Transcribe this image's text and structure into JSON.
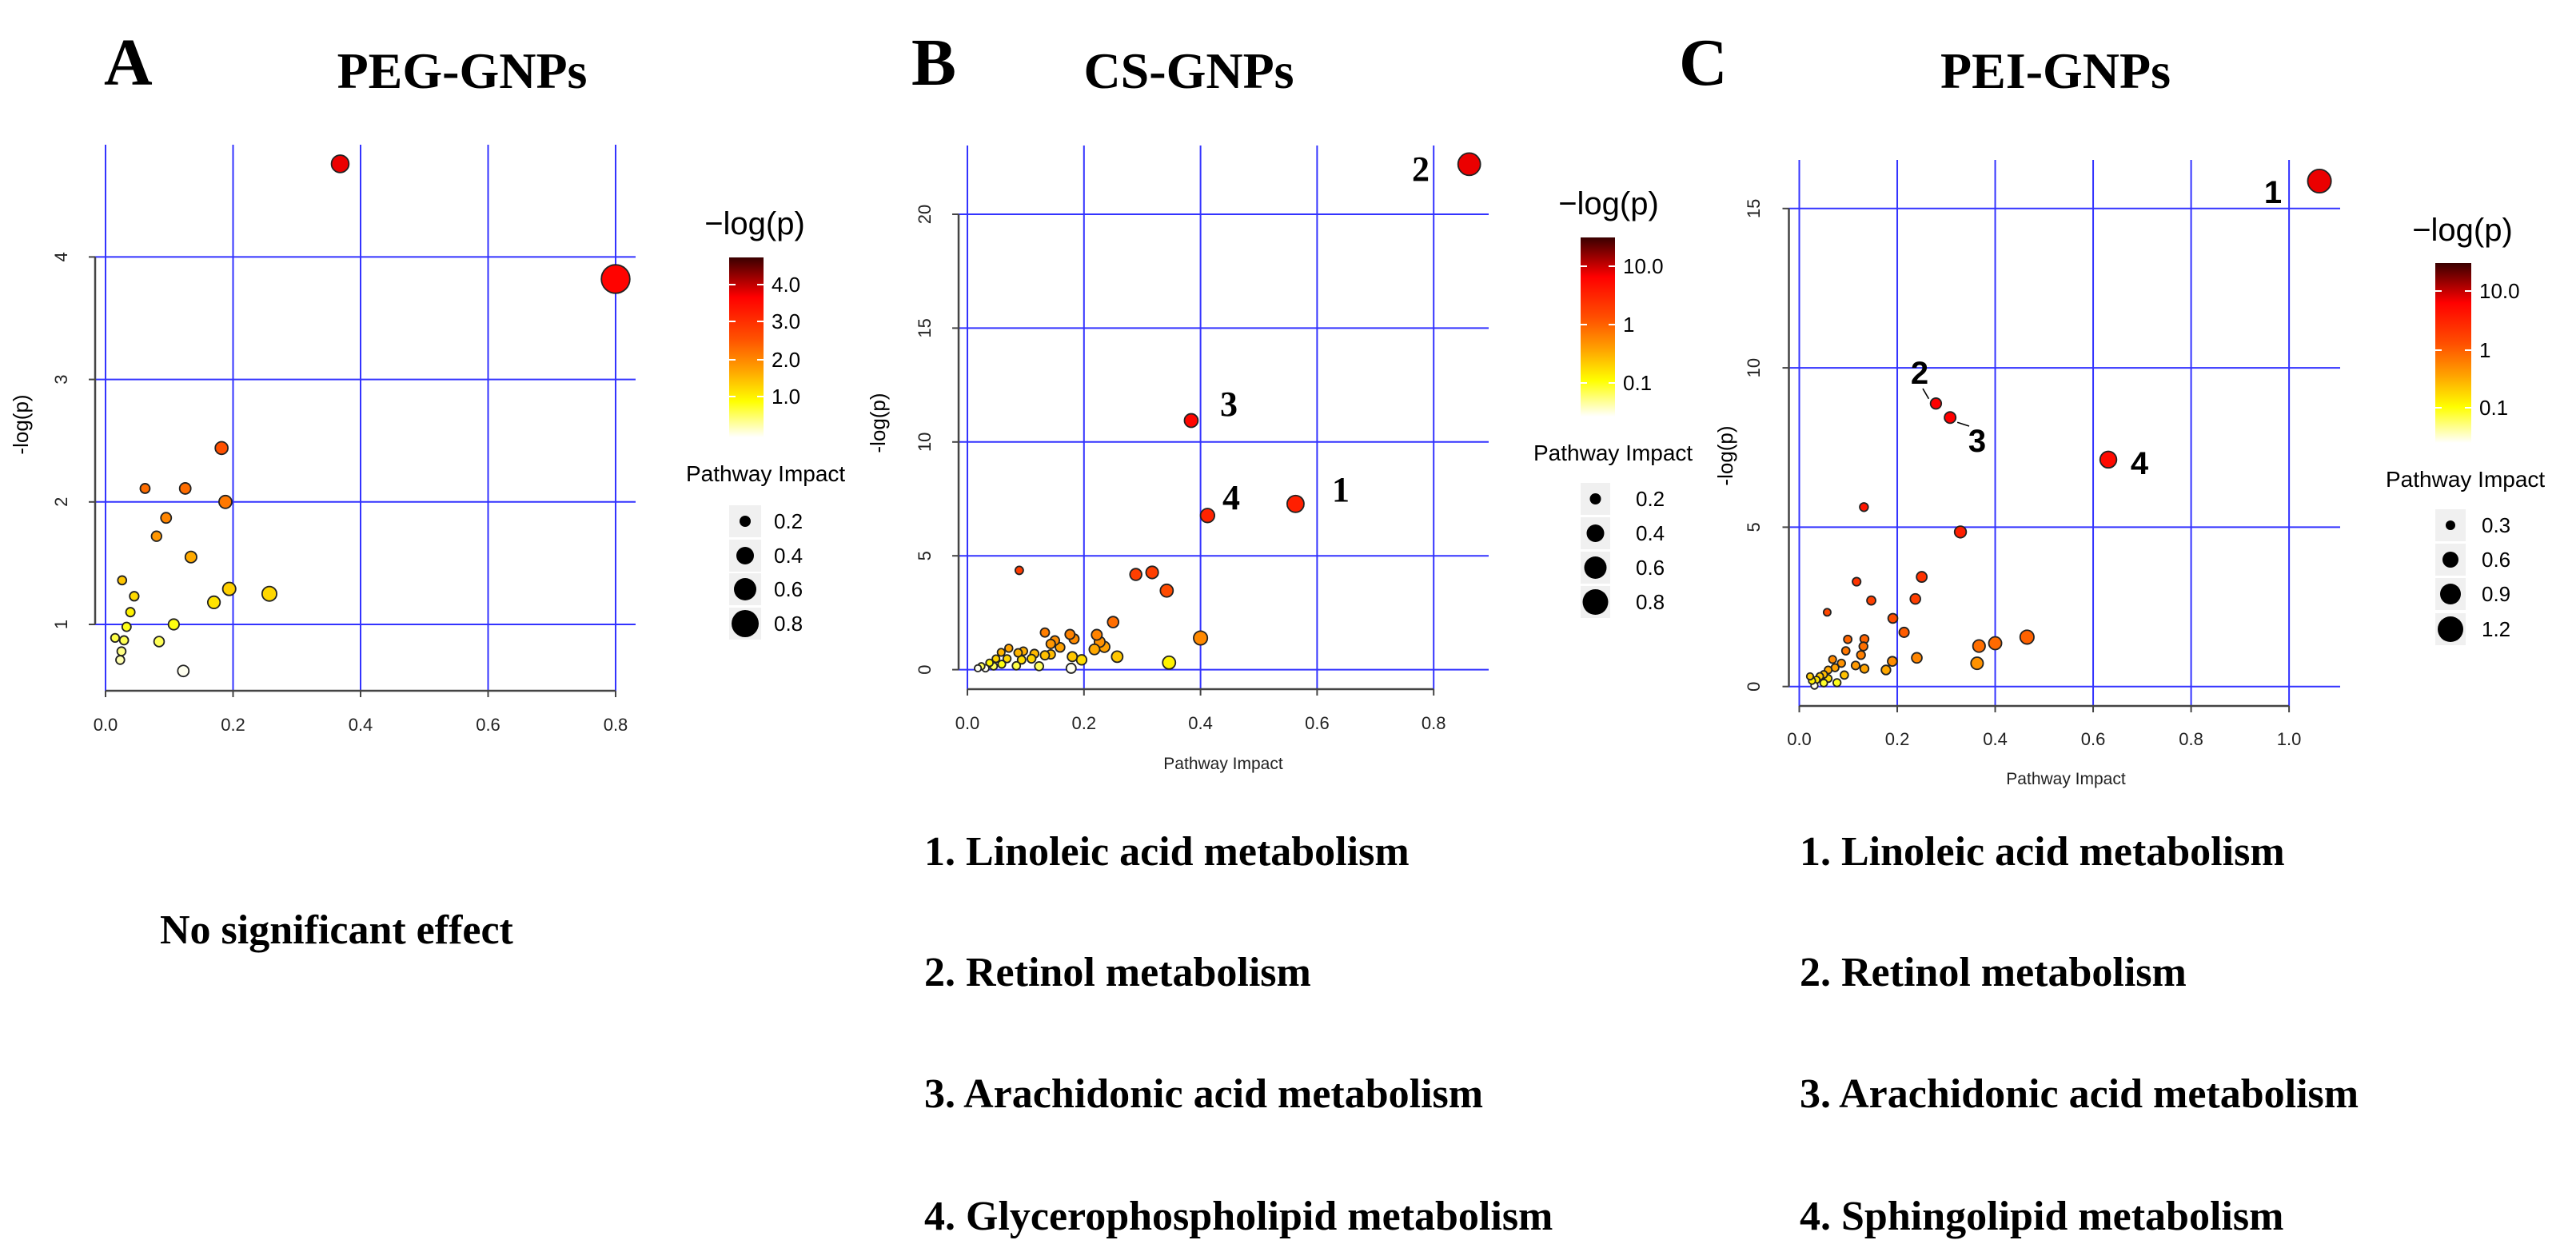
{
  "panels": [
    {
      "letter": "A",
      "title": "PEG-GNPs"
    },
    {
      "letter": "B",
      "title": "CS-GNPs"
    },
    {
      "letter": "C",
      "title": "PEI-GNPs"
    }
  ],
  "panel_a_note": "No significant effect",
  "panel_b_list": [
    "1. Linoleic acid metabolism",
    "2. Retinol metabolism",
    "3. Arachidonic acid metabolism",
    "4. Glycerophospholipid metabolism"
  ],
  "panel_c_list": [
    "1. Linoleic acid metabolism",
    "2. Retinol metabolism",
    "3. Arachidonic acid metabolism",
    "4. Sphingolipid metabolism"
  ],
  "colors": {
    "grid": "#3333ff",
    "point_stroke": "#222222"
  },
  "chart_data": [
    {
      "type": "scatter",
      "panel": "A",
      "xlabel": "",
      "ylabel": "-log(p)",
      "xlim": [
        0,
        0.8
      ],
      "ylim": [
        0.6,
        4.8
      ],
      "grid": true,
      "x_ticks": [
        "0.0",
        "0.2",
        "0.4",
        "0.6",
        "0.8"
      ],
      "x_tick_values": [
        0,
        0.2,
        0.4,
        0.6,
        0.8
      ],
      "y_ticks": [
        "1",
        "2",
        "3",
        "4"
      ],
      "y_tick_values": [
        1,
        2,
        3,
        4
      ],
      "colorbar": {
        "title": "−log(p)",
        "ticks": [
          "4.0",
          "3.0",
          "2.0",
          "1.0"
        ]
      },
      "size_legend": {
        "title": "Pathway Impact",
        "values": [
          "0.2",
          "0.4",
          "0.6",
          "0.8"
        ]
      },
      "points": [
        [
          0.368,
          4.76
        ],
        [
          0.8,
          3.82
        ],
        [
          0.182,
          2.44
        ],
        [
          0.062,
          2.11
        ],
        [
          0.125,
          2.11
        ],
        [
          0.188,
          2.0
        ],
        [
          0.095,
          1.87
        ],
        [
          0.08,
          1.72
        ],
        [
          0.134,
          1.55
        ],
        [
          0.026,
          1.36
        ],
        [
          0.045,
          1.23
        ],
        [
          0.039,
          1.1
        ],
        [
          0.194,
          1.29
        ],
        [
          0.257,
          1.25
        ],
        [
          0.17,
          1.18
        ],
        [
          0.033,
          0.98
        ],
        [
          0.107,
          1.0
        ],
        [
          0.015,
          0.89
        ],
        [
          0.029,
          0.87
        ],
        [
          0.025,
          0.78
        ],
        [
          0.023,
          0.71
        ],
        [
          0.084,
          0.86
        ],
        [
          0.122,
          0.62
        ]
      ],
      "annotations": []
    },
    {
      "type": "scatter",
      "panel": "B",
      "xlabel": "Pathway Impact",
      "ylabel": "-log(p)",
      "xlim": [
        0,
        0.86
      ],
      "ylim": [
        0,
        22.2
      ],
      "grid": true,
      "x_ticks": [
        "0.0",
        "0.2",
        "0.4",
        "0.6",
        "0.8"
      ],
      "x_tick_values": [
        0,
        0.2,
        0.4,
        0.6,
        0.8
      ],
      "y_ticks": [
        "0",
        "5",
        "10",
        "15",
        "20"
      ],
      "y_tick_values": [
        0,
        5,
        10,
        15,
        20
      ],
      "colorbar": {
        "title": "−log(p)",
        "ticks": [
          "10.0",
          "1",
          "0.1"
        ]
      },
      "size_legend": {
        "title": "Pathway Impact",
        "values": [
          "0.2",
          "0.4",
          "0.6",
          "0.8"
        ]
      },
      "points": [
        [
          0.861,
          22.2
        ],
        [
          0.384,
          10.94
        ],
        [
          0.412,
          6.77
        ],
        [
          0.563,
          7.28
        ],
        [
          0.089,
          4.36
        ],
        [
          0.289,
          4.18
        ],
        [
          0.317,
          4.27
        ],
        [
          0.342,
          3.47
        ],
        [
          0.25,
          2.09
        ],
        [
          0.4,
          1.39
        ],
        [
          0.133,
          1.63
        ],
        [
          0.176,
          1.55
        ],
        [
          0.183,
          1.35
        ],
        [
          0.222,
          1.53
        ],
        [
          0.227,
          1.22
        ],
        [
          0.235,
          1.0
        ],
        [
          0.15,
          1.28
        ],
        [
          0.143,
          1.13
        ],
        [
          0.159,
          0.98
        ],
        [
          0.218,
          0.89
        ],
        [
          0.257,
          0.57
        ],
        [
          0.346,
          0.31
        ],
        [
          0.18,
          0.57
        ],
        [
          0.196,
          0.43
        ],
        [
          0.178,
          0.06
        ],
        [
          0.123,
          0.15
        ],
        [
          0.143,
          0.67
        ],
        [
          0.133,
          0.63
        ],
        [
          0.115,
          0.7
        ],
        [
          0.11,
          0.48
        ],
        [
          0.096,
          0.81
        ],
        [
          0.087,
          0.74
        ],
        [
          0.071,
          0.94
        ],
        [
          0.084,
          0.17
        ],
        [
          0.093,
          0.43
        ],
        [
          0.068,
          0.48
        ],
        [
          0.058,
          0.76
        ],
        [
          0.059,
          0.24
        ],
        [
          0.049,
          0.48
        ],
        [
          0.045,
          0.15
        ],
        [
          0.038,
          0.3
        ],
        [
          0.031,
          0.06
        ],
        [
          0.018,
          0.06
        ],
        [
          0.024,
          0.15
        ]
      ],
      "annotations": [
        {
          "text": "2",
          "point": 0
        },
        {
          "text": "3",
          "point": 1
        },
        {
          "text": "4",
          "point": 2
        },
        {
          "text": "1",
          "point": 3
        }
      ]
    },
    {
      "type": "scatter",
      "panel": "C",
      "xlabel": "Pathway Impact",
      "ylabel": "-log(p)",
      "xlim": [
        0,
        1.06
      ],
      "ylim": [
        0,
        15.9
      ],
      "grid": true,
      "x_ticks": [
        "0.0",
        "0.2",
        "0.4",
        "0.6",
        "0.8",
        "1.0"
      ],
      "x_tick_values": [
        0,
        0.2,
        0.4,
        0.6,
        0.8,
        1.0
      ],
      "y_ticks": [
        "0",
        "5",
        "10",
        "15"
      ],
      "y_tick_values": [
        0,
        5,
        10,
        15
      ],
      "colorbar": {
        "title": "−log(p)",
        "ticks": [
          "10.0",
          "1",
          "0.1"
        ]
      },
      "size_legend": {
        "title": "Pathway Impact",
        "values": [
          "0.3",
          "0.6",
          "0.9",
          "1.2"
        ]
      },
      "points": [
        [
          1.062,
          15.86
        ],
        [
          0.279,
          8.88
        ],
        [
          0.308,
          8.44
        ],
        [
          0.631,
          7.12
        ],
        [
          0.132,
          5.63
        ],
        [
          0.329,
          4.85
        ],
        [
          0.25,
          3.44
        ],
        [
          0.117,
          3.29
        ],
        [
          0.237,
          2.75
        ],
        [
          0.147,
          2.7
        ],
        [
          0.057,
          2.33
        ],
        [
          0.191,
          2.14
        ],
        [
          0.214,
          1.7
        ],
        [
          0.465,
          1.55
        ],
        [
          0.4,
          1.36
        ],
        [
          0.367,
          1.27
        ],
        [
          0.363,
          0.73
        ],
        [
          0.24,
          0.9
        ],
        [
          0.19,
          0.79
        ],
        [
          0.177,
          0.52
        ],
        [
          0.099,
          1.48
        ],
        [
          0.133,
          1.49
        ],
        [
          0.131,
          1.26
        ],
        [
          0.126,
          0.99
        ],
        [
          0.095,
          1.12
        ],
        [
          0.115,
          0.66
        ],
        [
          0.133,
          0.56
        ],
        [
          0.068,
          0.85
        ],
        [
          0.086,
          0.73
        ],
        [
          0.073,
          0.59
        ],
        [
          0.092,
          0.36
        ],
        [
          0.059,
          0.52
        ],
        [
          0.077,
          0.12
        ],
        [
          0.05,
          0.38
        ],
        [
          0.042,
          0.32
        ],
        [
          0.022,
          0.32
        ],
        [
          0.035,
          0.21
        ],
        [
          0.026,
          0.18
        ],
        [
          0.031,
          0.03
        ],
        [
          0.05,
          0.11
        ],
        [
          0.059,
          0.25
        ]
      ],
      "annotations": [
        {
          "text": "1",
          "point": 0
        },
        {
          "text": "2",
          "point": 1
        },
        {
          "text": "3",
          "point": 2
        },
        {
          "text": "4",
          "point": 3
        }
      ]
    }
  ]
}
